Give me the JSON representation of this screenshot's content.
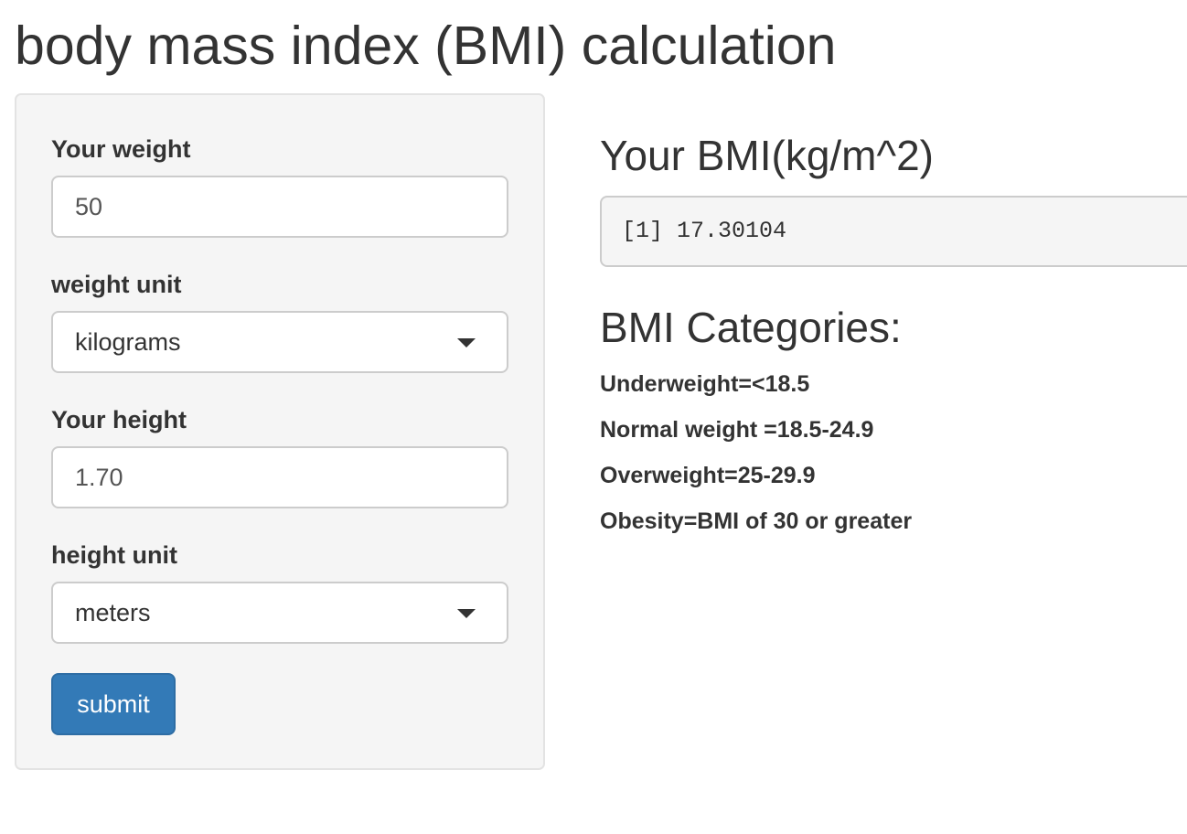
{
  "page": {
    "title": "body mass index (BMI) calculation"
  },
  "sidebar": {
    "weight_label": "Your weight",
    "weight_value": "50",
    "weight_unit_label": "weight unit",
    "weight_unit_selected": "kilograms",
    "height_label": "Your height",
    "height_value": "1.70",
    "height_unit_label": "height unit",
    "height_unit_selected": "meters",
    "submit_label": "submit"
  },
  "main": {
    "bmi_heading": "Your BMI(kg/m^2)",
    "bmi_output": "[1] 17.30104",
    "categories_heading": "BMI Categories:",
    "categories": [
      "Underweight=<18.5",
      "Normal weight =18.5-24.9",
      "Overweight=25-29.9",
      "Obesity=BMI of 30 or greater"
    ]
  },
  "colors": {
    "primary_button": "#337ab7",
    "panel_background": "#f5f5f5",
    "text": "#333333"
  },
  "icons": {
    "select_caret": "caret-down-icon"
  }
}
